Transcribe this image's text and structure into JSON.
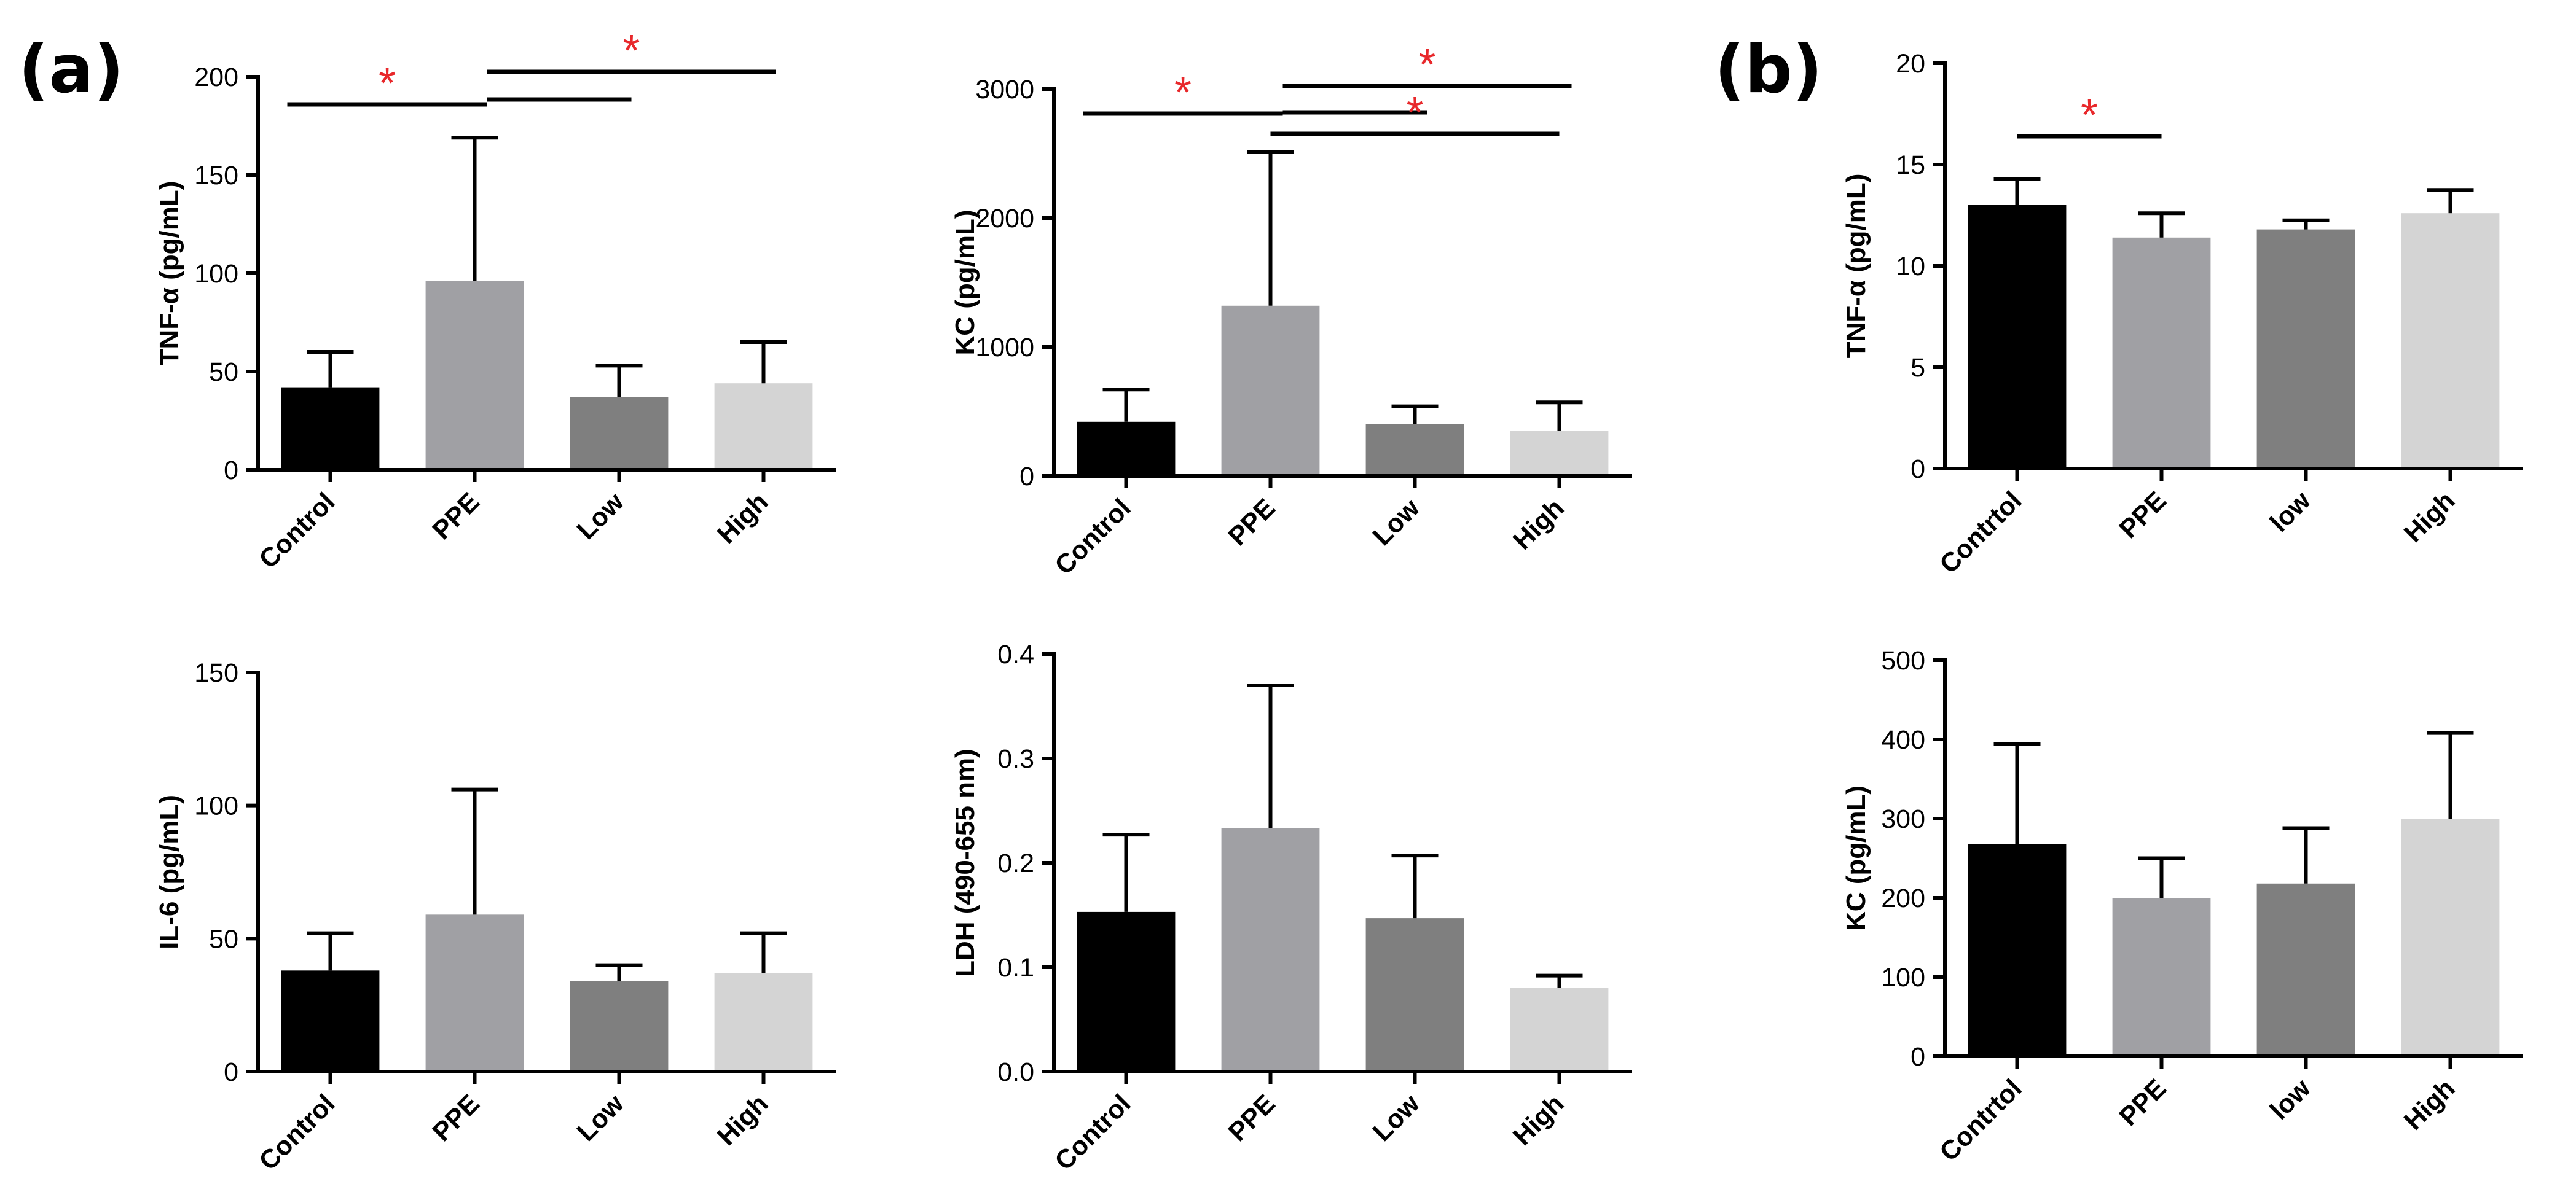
{
  "panel_labels": {
    "a": "(a)",
    "b": "(b)"
  },
  "colors": {
    "Control": "#000000",
    "PPE": "#a0a0a4",
    "Low": "#7f7f7f",
    "High": "#d4d4d4",
    "significance_star": "#e8282b"
  },
  "chart_data": [
    {
      "id": "a_tnf",
      "type": "bar",
      "panel": "(a)",
      "categories": [
        "Control",
        "PPE",
        "Low",
        "High"
      ],
      "values": [
        42,
        96,
        37,
        44
      ],
      "error": [
        18,
        73,
        16,
        21
      ],
      "ylabel": "TNF-α (pg/mL)",
      "xlabel": "",
      "ylim": [
        0,
        200
      ],
      "yticks": [
        0,
        50,
        100,
        150,
        200
      ],
      "tick_labels": [
        "0",
        "50",
        "100",
        "150",
        "200"
      ],
      "significance": [
        {
          "from": "Control",
          "to": "PPE",
          "label": "*"
        },
        {
          "from": "PPE",
          "to": "Low",
          "label": ""
        },
        {
          "from": "PPE",
          "to": "High",
          "label": "*"
        }
      ]
    },
    {
      "id": "a_kc",
      "type": "bar",
      "panel": "(a)",
      "categories": [
        "Control",
        "PPE",
        "Low",
        "High"
      ],
      "values": [
        420,
        1320,
        400,
        350
      ],
      "error": [
        250,
        1190,
        140,
        220
      ],
      "ylabel": "KC (pg/mL)",
      "xlabel": "",
      "ylim": [
        0,
        3000
      ],
      "yticks": [
        0,
        1000,
        2000,
        3000
      ],
      "tick_labels": [
        "0",
        "1000",
        "2000",
        "3000"
      ],
      "significance": [
        {
          "from": "Control",
          "to": "PPE",
          "label": "*"
        },
        {
          "from": "PPE",
          "to": "Low",
          "label": ""
        },
        {
          "from": "PPE",
          "to": "High",
          "label": "*"
        }
      ]
    },
    {
      "id": "a_il6",
      "type": "bar",
      "panel": "(a)",
      "categories": [
        "Control",
        "PPE",
        "Low",
        "High"
      ],
      "values": [
        38,
        59,
        34,
        37
      ],
      "error": [
        14,
        47,
        6,
        15
      ],
      "ylabel": "IL-6 (pg/mL)",
      "xlabel": "",
      "ylim": [
        0,
        150
      ],
      "yticks": [
        0,
        50,
        100,
        150
      ],
      "tick_labels": [
        "0",
        "50",
        "100",
        "150"
      ],
      "significance": []
    },
    {
      "id": "a_ldh",
      "type": "bar",
      "panel": "(a)",
      "categories": [
        "Control",
        "PPE",
        "Low",
        "High"
      ],
      "values": [
        0.153,
        0.233,
        0.147,
        0.08
      ],
      "error": [
        0.074,
        0.137,
        0.06,
        0.012
      ],
      "ylabel": "LDH (490-655 nm)",
      "xlabel": "",
      "ylim": [
        0,
        0.4
      ],
      "yticks": [
        0,
        0.1,
        0.2,
        0.3,
        0.4
      ],
      "tick_labels": [
        "0.0",
        "0.1",
        "0.2",
        "0.3",
        "0.4"
      ],
      "significance": [
        {
          "from": "PPE",
          "to": "High",
          "label": "*"
        }
      ]
    },
    {
      "id": "b_tnf",
      "type": "bar",
      "panel": "(b)",
      "categories": [
        "Contrtol",
        "PPE",
        "low",
        "High"
      ],
      "values": [
        13.0,
        11.4,
        11.8,
        12.6
      ],
      "error": [
        1.3,
        1.2,
        0.45,
        1.15
      ],
      "ylabel": "TNF-α (pg/mL)",
      "xlabel": "",
      "ylim": [
        0,
        20
      ],
      "yticks": [
        0,
        5,
        10,
        15,
        20
      ],
      "tick_labels": [
        "0",
        "5",
        "10",
        "15",
        "20"
      ],
      "significance": [
        {
          "from": "Contrtol",
          "to": "PPE",
          "label": "*"
        }
      ]
    },
    {
      "id": "b_kc",
      "type": "bar",
      "panel": "(b)",
      "categories": [
        "Contrtol",
        "PPE",
        "low",
        "High"
      ],
      "values": [
        268,
        200,
        218,
        300
      ],
      "error": [
        126,
        50,
        70,
        108
      ],
      "ylabel": "KC (pg/mL)",
      "xlabel": "",
      "ylim": [
        0,
        500
      ],
      "yticks": [
        0,
        100,
        200,
        300,
        400,
        500
      ],
      "tick_labels": [
        "0",
        "100",
        "200",
        "300",
        "400",
        "500"
      ],
      "significance": []
    }
  ]
}
